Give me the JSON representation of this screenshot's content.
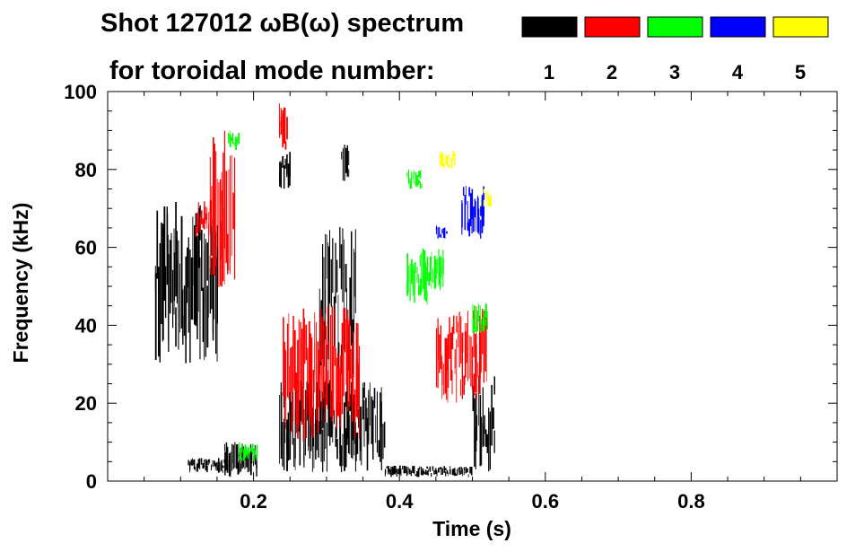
{
  "chart_data": {
    "type": "heatmap",
    "title_line1": "Shot 127012 ωB(ω) spectrum",
    "title_line2": "for toroidal mode number:",
    "xlabel": "Time (s)",
    "ylabel": "Frequency (kHz)",
    "xlim": [
      0.0,
      1.0
    ],
    "ylim": [
      0,
      100
    ],
    "x_ticks": [
      {
        "value": 0.2,
        "label": "0.2"
      },
      {
        "value": 0.4,
        "label": "0.4"
      },
      {
        "value": 0.6,
        "label": "0.6"
      },
      {
        "value": 0.8,
        "label": "0.8"
      }
    ],
    "y_ticks": [
      {
        "value": 0,
        "label": "0"
      },
      {
        "value": 20,
        "label": "20"
      },
      {
        "value": 40,
        "label": "40"
      },
      {
        "value": 60,
        "label": "60"
      },
      {
        "value": 80,
        "label": "80"
      },
      {
        "value": 100,
        "label": "100"
      }
    ],
    "legend": [
      {
        "label": "1",
        "color": "#000000"
      },
      {
        "label": "2",
        "color": "#ff0000"
      },
      {
        "label": "3",
        "color": "#00ff00"
      },
      {
        "label": "4",
        "color": "#0000ff"
      },
      {
        "label": "5",
        "color": "#ffff00"
      }
    ],
    "legend_placement": "top-right",
    "grid": false,
    "series": [
      {
        "mode": "1",
        "regions": [
          {
            "t": [
              0.065,
              0.15
            ],
            "f": [
              30,
              72
            ]
          },
          {
            "t": [
              0.11,
              0.165
            ],
            "f": [
              2,
              6
            ]
          },
          {
            "t": [
              0.16,
              0.205
            ],
            "f": [
              1,
              10
            ]
          },
          {
            "t": [
              0.235,
              0.38
            ],
            "f": [
              2,
              26
            ]
          },
          {
            "t": [
              0.29,
              0.34
            ],
            "f": [
              26,
              66
            ]
          },
          {
            "t": [
              0.235,
              0.25
            ],
            "f": [
              75,
              85
            ]
          },
          {
            "t": [
              0.32,
              0.33
            ],
            "f": [
              75,
              88
            ]
          },
          {
            "t": [
              0.5,
              0.53
            ],
            "f": [
              2,
              28
            ]
          },
          {
            "t": [
              0.38,
              0.5
            ],
            "f": [
              1,
              4
            ]
          }
        ]
      },
      {
        "mode": "2",
        "regions": [
          {
            "t": [
              0.14,
              0.175
            ],
            "f": [
              48,
              92
            ]
          },
          {
            "t": [
              0.12,
              0.14
            ],
            "f": [
              62,
              72
            ]
          },
          {
            "t": [
              0.24,
              0.345
            ],
            "f": [
              10,
              45
            ]
          },
          {
            "t": [
              0.45,
              0.52
            ],
            "f": [
              20,
              45
            ]
          },
          {
            "t": [
              0.235,
              0.245
            ],
            "f": [
              85,
              97
            ]
          }
        ]
      },
      {
        "mode": "3",
        "regions": [
          {
            "t": [
              0.165,
              0.18
            ],
            "f": [
              85,
              90
            ]
          },
          {
            "t": [
              0.41,
              0.43
            ],
            "f": [
              75,
              80
            ]
          },
          {
            "t": [
              0.41,
              0.46
            ],
            "f": [
              45,
              60
            ]
          },
          {
            "t": [
              0.5,
              0.52
            ],
            "f": [
              38,
              46
            ]
          },
          {
            "t": [
              0.18,
              0.205
            ],
            "f": [
              5,
              10
            ]
          }
        ]
      },
      {
        "mode": "4",
        "regions": [
          {
            "t": [
              0.485,
              0.515
            ],
            "f": [
              62,
              76
            ]
          },
          {
            "t": [
              0.45,
              0.465
            ],
            "f": [
              62,
              66
            ]
          }
        ]
      },
      {
        "mode": "5",
        "regions": [
          {
            "t": [
              0.455,
              0.475
            ],
            "f": [
              80,
              85
            ]
          },
          {
            "t": [
              0.515,
              0.525
            ],
            "f": [
              70,
              75
            ]
          }
        ]
      }
    ]
  }
}
